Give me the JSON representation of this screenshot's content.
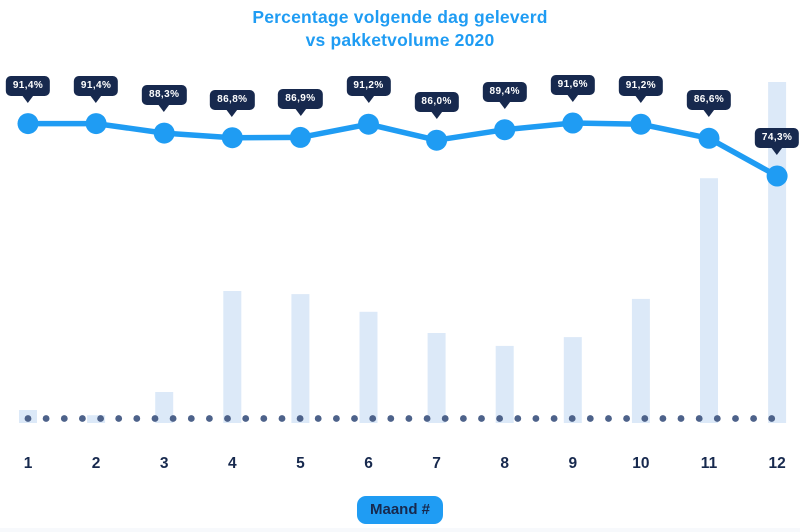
{
  "title": {
    "line1": "Percentage volgende dag geleverd",
    "line2": "vs pakketvolume 2020"
  },
  "colors": {
    "accent_blue": "#1f9cf3",
    "navy": "#17294e",
    "bar_fill": "#dce9f8",
    "dot_color": "#4d628a",
    "badge_text": "#ffffff"
  },
  "chart_data": {
    "type": "combo",
    "title": "Percentage volgende dag geleverd vs pakketvolume 2020",
    "categories": [
      "1",
      "2",
      "3",
      "4",
      "5",
      "6",
      "7",
      "8",
      "9",
      "10",
      "11",
      "12"
    ],
    "xlabel": "Maand #",
    "ylabel": "",
    "legend": "none",
    "grid": "none",
    "baseline_style": "dotted",
    "series": [
      {
        "name": "Percentage volgende dag geleverd",
        "type": "line",
        "unit": "%",
        "values": [
          91.4,
          91.4,
          88.3,
          86.8,
          86.9,
          91.2,
          86.0,
          89.4,
          91.6,
          91.2,
          86.6,
          74.3
        ],
        "labels": [
          "91,4%",
          "91,4%",
          "88,3%",
          "86,8%",
          "86,9%",
          "91,2%",
          "86,0%",
          "89,4%",
          "91,6%",
          "91,2%",
          "86,6%",
          "74,3%"
        ]
      },
      {
        "name": "Pakketvolume",
        "type": "bar",
        "unit": "relative, % of max (no value axis shown)",
        "values": [
          3.8,
          2.3,
          9.1,
          38.7,
          37.8,
          32.6,
          26.4,
          22.6,
          25.2,
          36.4,
          71.8,
          100
        ]
      }
    ]
  }
}
